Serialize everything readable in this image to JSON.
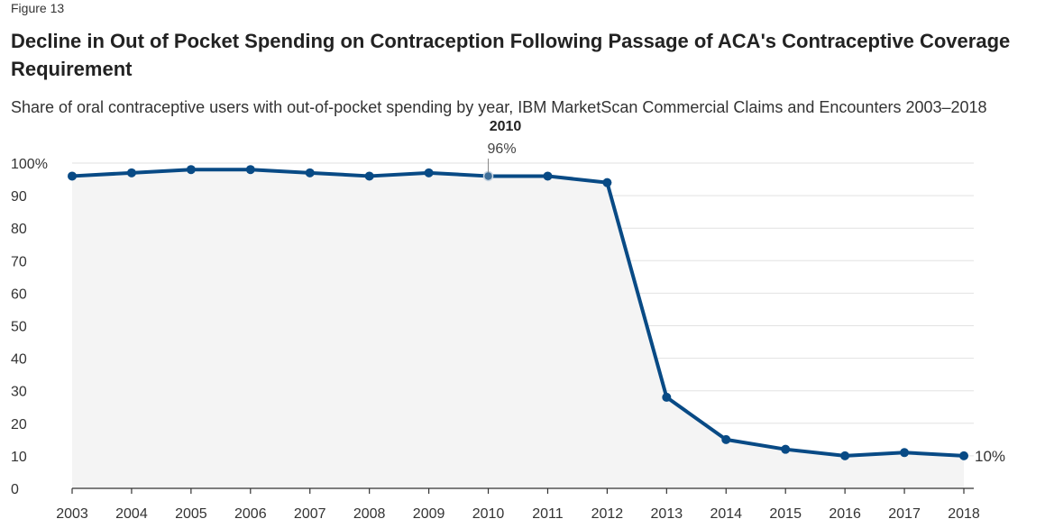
{
  "figure_label": "Figure 13",
  "chart_data": {
    "type": "line",
    "title": "Decline in Out of Pocket Spending on Contraception Following Passage of ACA's Contraceptive Coverage Requirement",
    "subtitle": "Share of oral contraceptive users with out-of-pocket spending by year, IBM MarketScan Commercial Claims and Encounters 2003–2018",
    "x": [
      2003,
      2004,
      2005,
      2006,
      2007,
      2008,
      2009,
      2010,
      2011,
      2012,
      2013,
      2014,
      2015,
      2016,
      2017,
      2018
    ],
    "series": [
      {
        "values": [
          96,
          97,
          98,
          98,
          97,
          96,
          97,
          96,
          96,
          94,
          28,
          15,
          12,
          10,
          11,
          10
        ]
      }
    ],
    "ylim": [
      0,
      100
    ],
    "y_ticks": [
      0,
      10,
      20,
      30,
      40,
      50,
      60,
      70,
      80,
      90,
      100
    ],
    "y_tick_labels": [
      "0",
      "10",
      "20",
      "30",
      "40",
      "50",
      "60",
      "70",
      "80",
      "90",
      "100%"
    ],
    "x_tick_labels": [
      "2003",
      "2004",
      "2005",
      "2006",
      "2007",
      "2008",
      "2009",
      "2010",
      "2011",
      "2012",
      "2013",
      "2014",
      "2015",
      "2016",
      "2017",
      "2018"
    ],
    "grid": true,
    "area_fill": true,
    "annotation": {
      "x": 2010,
      "year_label": "2010",
      "value_label": "96%"
    },
    "end_label": "10%",
    "line_color": "#084a85",
    "area_color": "#f4f4f4",
    "grid_color": "#e2e2e2"
  }
}
